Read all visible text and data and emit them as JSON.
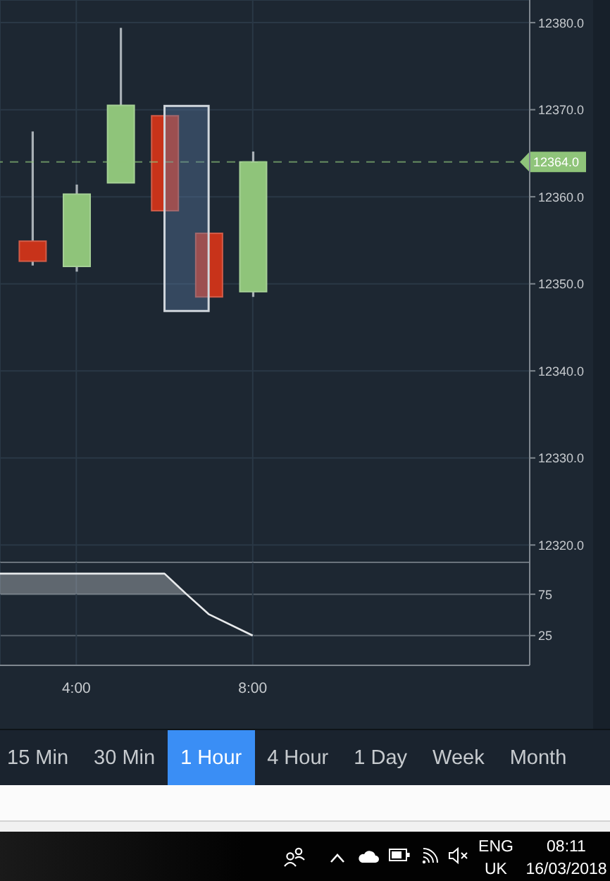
{
  "chart_data": [
    {
      "type": "candlestick",
      "x": [
        3,
        4,
        5,
        6,
        7,
        8
      ],
      "ohlc": [
        [
          12354.9,
          12367.5,
          12352.1,
          12352.6
        ],
        [
          12352.0,
          12361.4,
          12351.4,
          12360.3
        ],
        [
          12361.6,
          12379.4,
          12361.6,
          12370.5
        ],
        [
          12369.3,
          12369.3,
          12358.4,
          12358.4
        ],
        [
          12355.8,
          12355.8,
          12348.5,
          12348.5
        ],
        [
          12349.1,
          12365.2,
          12348.5,
          12364.0
        ]
      ],
      "colors": [
        "#c8331a",
        "#8fc47a",
        "#8fc47a",
        "#c8331a",
        "#c8331a",
        "#8fc47a"
      ],
      "xlim": [
        2.27,
        14.28
      ],
      "ylim": [
        12318,
        12382.6
      ],
      "yticks": [
        {
          "value": 12320,
          "label": "12320.0"
        },
        {
          "value": 12330,
          "label": "12330.0"
        },
        {
          "value": 12340,
          "label": "12340.0"
        },
        {
          "value": 12350,
          "label": "12350.0"
        },
        {
          "value": 12360,
          "label": "12360.0"
        },
        {
          "value": 12370,
          "label": "12370.0"
        },
        {
          "value": 12380,
          "label": "12380.0"
        }
      ],
      "ref_lines": [
        {
          "axis": "y",
          "value": 12364.0,
          "label": "12364.0",
          "color": "#8fc47a",
          "line_style": "dashed"
        }
      ],
      "grid": true,
      "tick_labels": "y"
    },
    {
      "type": "line",
      "series": [
        {
          "type": "line",
          "color": "#e8eaec",
          "x": [
            2.27,
            3,
            4,
            5,
            6,
            6.5,
            7,
            8
          ],
          "values": [
            100,
            100,
            100,
            100,
            100,
            75,
            51,
            25
          ],
          "lower": [
            75,
            75,
            75,
            75,
            75,
            75,
            null,
            null
          ],
          "upper": [
            100,
            100,
            100,
            100,
            100,
            75,
            null,
            null
          ]
        }
      ],
      "xlim": [
        2.27,
        14.28
      ],
      "xticks": [
        {
          "value": 4,
          "label": "4:00"
        },
        {
          "value": 8,
          "label": "8:00"
        }
      ],
      "ylim": [
        -11,
        113.5
      ],
      "yticks": [
        75,
        25
      ],
      "grid": true
    },
    {
      "type": "other",
      "annotations": [
        "15 Min",
        "30 Min",
        "1 Hour",
        "4 Hour",
        "1 Day",
        "Week",
        "Month"
      ]
    },
    {
      "type": "other",
      "annotations": [
        "ENG",
        "UK",
        "08:11",
        "16/03/2018"
      ]
    }
  ]
}
